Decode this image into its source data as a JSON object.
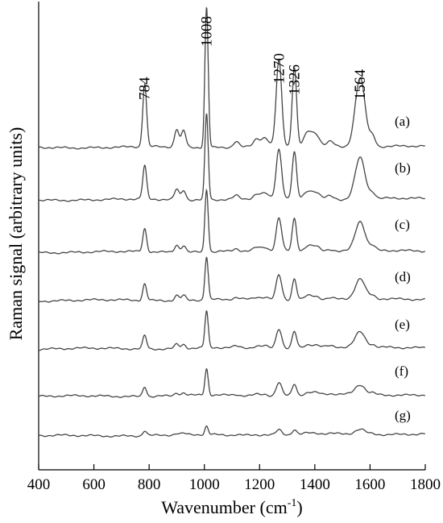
{
  "chart_data": {
    "type": "line",
    "title": "",
    "xlabel": "Wavenumber (cm",
    "xlabel_sup": "-1",
    "xlabel_close": ")",
    "ylabel": "Raman signal (arbitrary units)",
    "xlim": [
      400,
      1800
    ],
    "xticks": [
      "400",
      "600",
      "800",
      "1000",
      "1200",
      "1400",
      "1600",
      "1800"
    ],
    "grid": false,
    "peak_labels": [
      {
        "x": 784,
        "text": "784"
      },
      {
        "x": 1008,
        "text": "1008"
      },
      {
        "x": 1270,
        "text": "1270"
      },
      {
        "x": 1326,
        "text": "1326"
      },
      {
        "x": 1564,
        "text": "1564"
      }
    ],
    "peaks": [
      {
        "x": 784,
        "w": 7,
        "rel": 1.0
      },
      {
        "x": 900,
        "w": 8,
        "rel": 0.45
      },
      {
        "x": 925,
        "w": 8,
        "rel": 0.42
      },
      {
        "x": 1008,
        "w": 6,
        "rel": 1.0
      },
      {
        "x": 1115,
        "w": 10,
        "rel": 0.15
      },
      {
        "x": 1190,
        "w": 12,
        "rel": 0.2
      },
      {
        "x": 1220,
        "w": 12,
        "rel": 0.22
      },
      {
        "x": 1270,
        "w": 10,
        "rel": 0.85
      },
      {
        "x": 1326,
        "w": 8,
        "rel": 0.85
      },
      {
        "x": 1375,
        "w": 14,
        "rel": 0.35
      },
      {
        "x": 1405,
        "w": 14,
        "rel": 0.3
      },
      {
        "x": 1455,
        "w": 14,
        "rel": 0.15
      },
      {
        "x": 1564,
        "w": 18,
        "rel": 1.0
      },
      {
        "x": 1610,
        "w": 10,
        "rel": 0.25
      }
    ],
    "series": [
      {
        "name": "(a)",
        "baseline": 0.0,
        "intensity": {
          "784": 0.38,
          "1008": 0.85,
          "1270": 0.52,
          "1326": 0.48,
          "1564": 0.42
        }
      },
      {
        "name": "(b)",
        "baseline": 0.0,
        "intensity": {
          "784": 0.2,
          "1008": 0.52,
          "1270": 0.3,
          "1326": 0.28,
          "1564": 0.25
        }
      },
      {
        "name": "(c)",
        "baseline": 0.0,
        "intensity": {
          "784": 0.14,
          "1008": 0.38,
          "1270": 0.2,
          "1326": 0.2,
          "1564": 0.18
        }
      },
      {
        "name": "(d)",
        "baseline": 0.0,
        "intensity": {
          "784": 0.1,
          "1008": 0.26,
          "1270": 0.15,
          "1326": 0.13,
          "1564": 0.12
        }
      },
      {
        "name": "(e)",
        "baseline": 0.0,
        "intensity": {
          "784": 0.08,
          "1008": 0.22,
          "1270": 0.12,
          "1326": 0.1,
          "1564": 0.09
        }
      },
      {
        "name": "(f)",
        "baseline": 0.0,
        "intensity": {
          "784": 0.06,
          "1008": 0.16,
          "1270": 0.08,
          "1326": 0.07,
          "1564": 0.06
        }
      },
      {
        "name": "(g)",
        "baseline": 0.0,
        "intensity": {
          "784": 0.03,
          "1008": 0.05,
          "1270": 0.03,
          "1326": 0.03,
          "1564": 0.03
        }
      }
    ]
  }
}
